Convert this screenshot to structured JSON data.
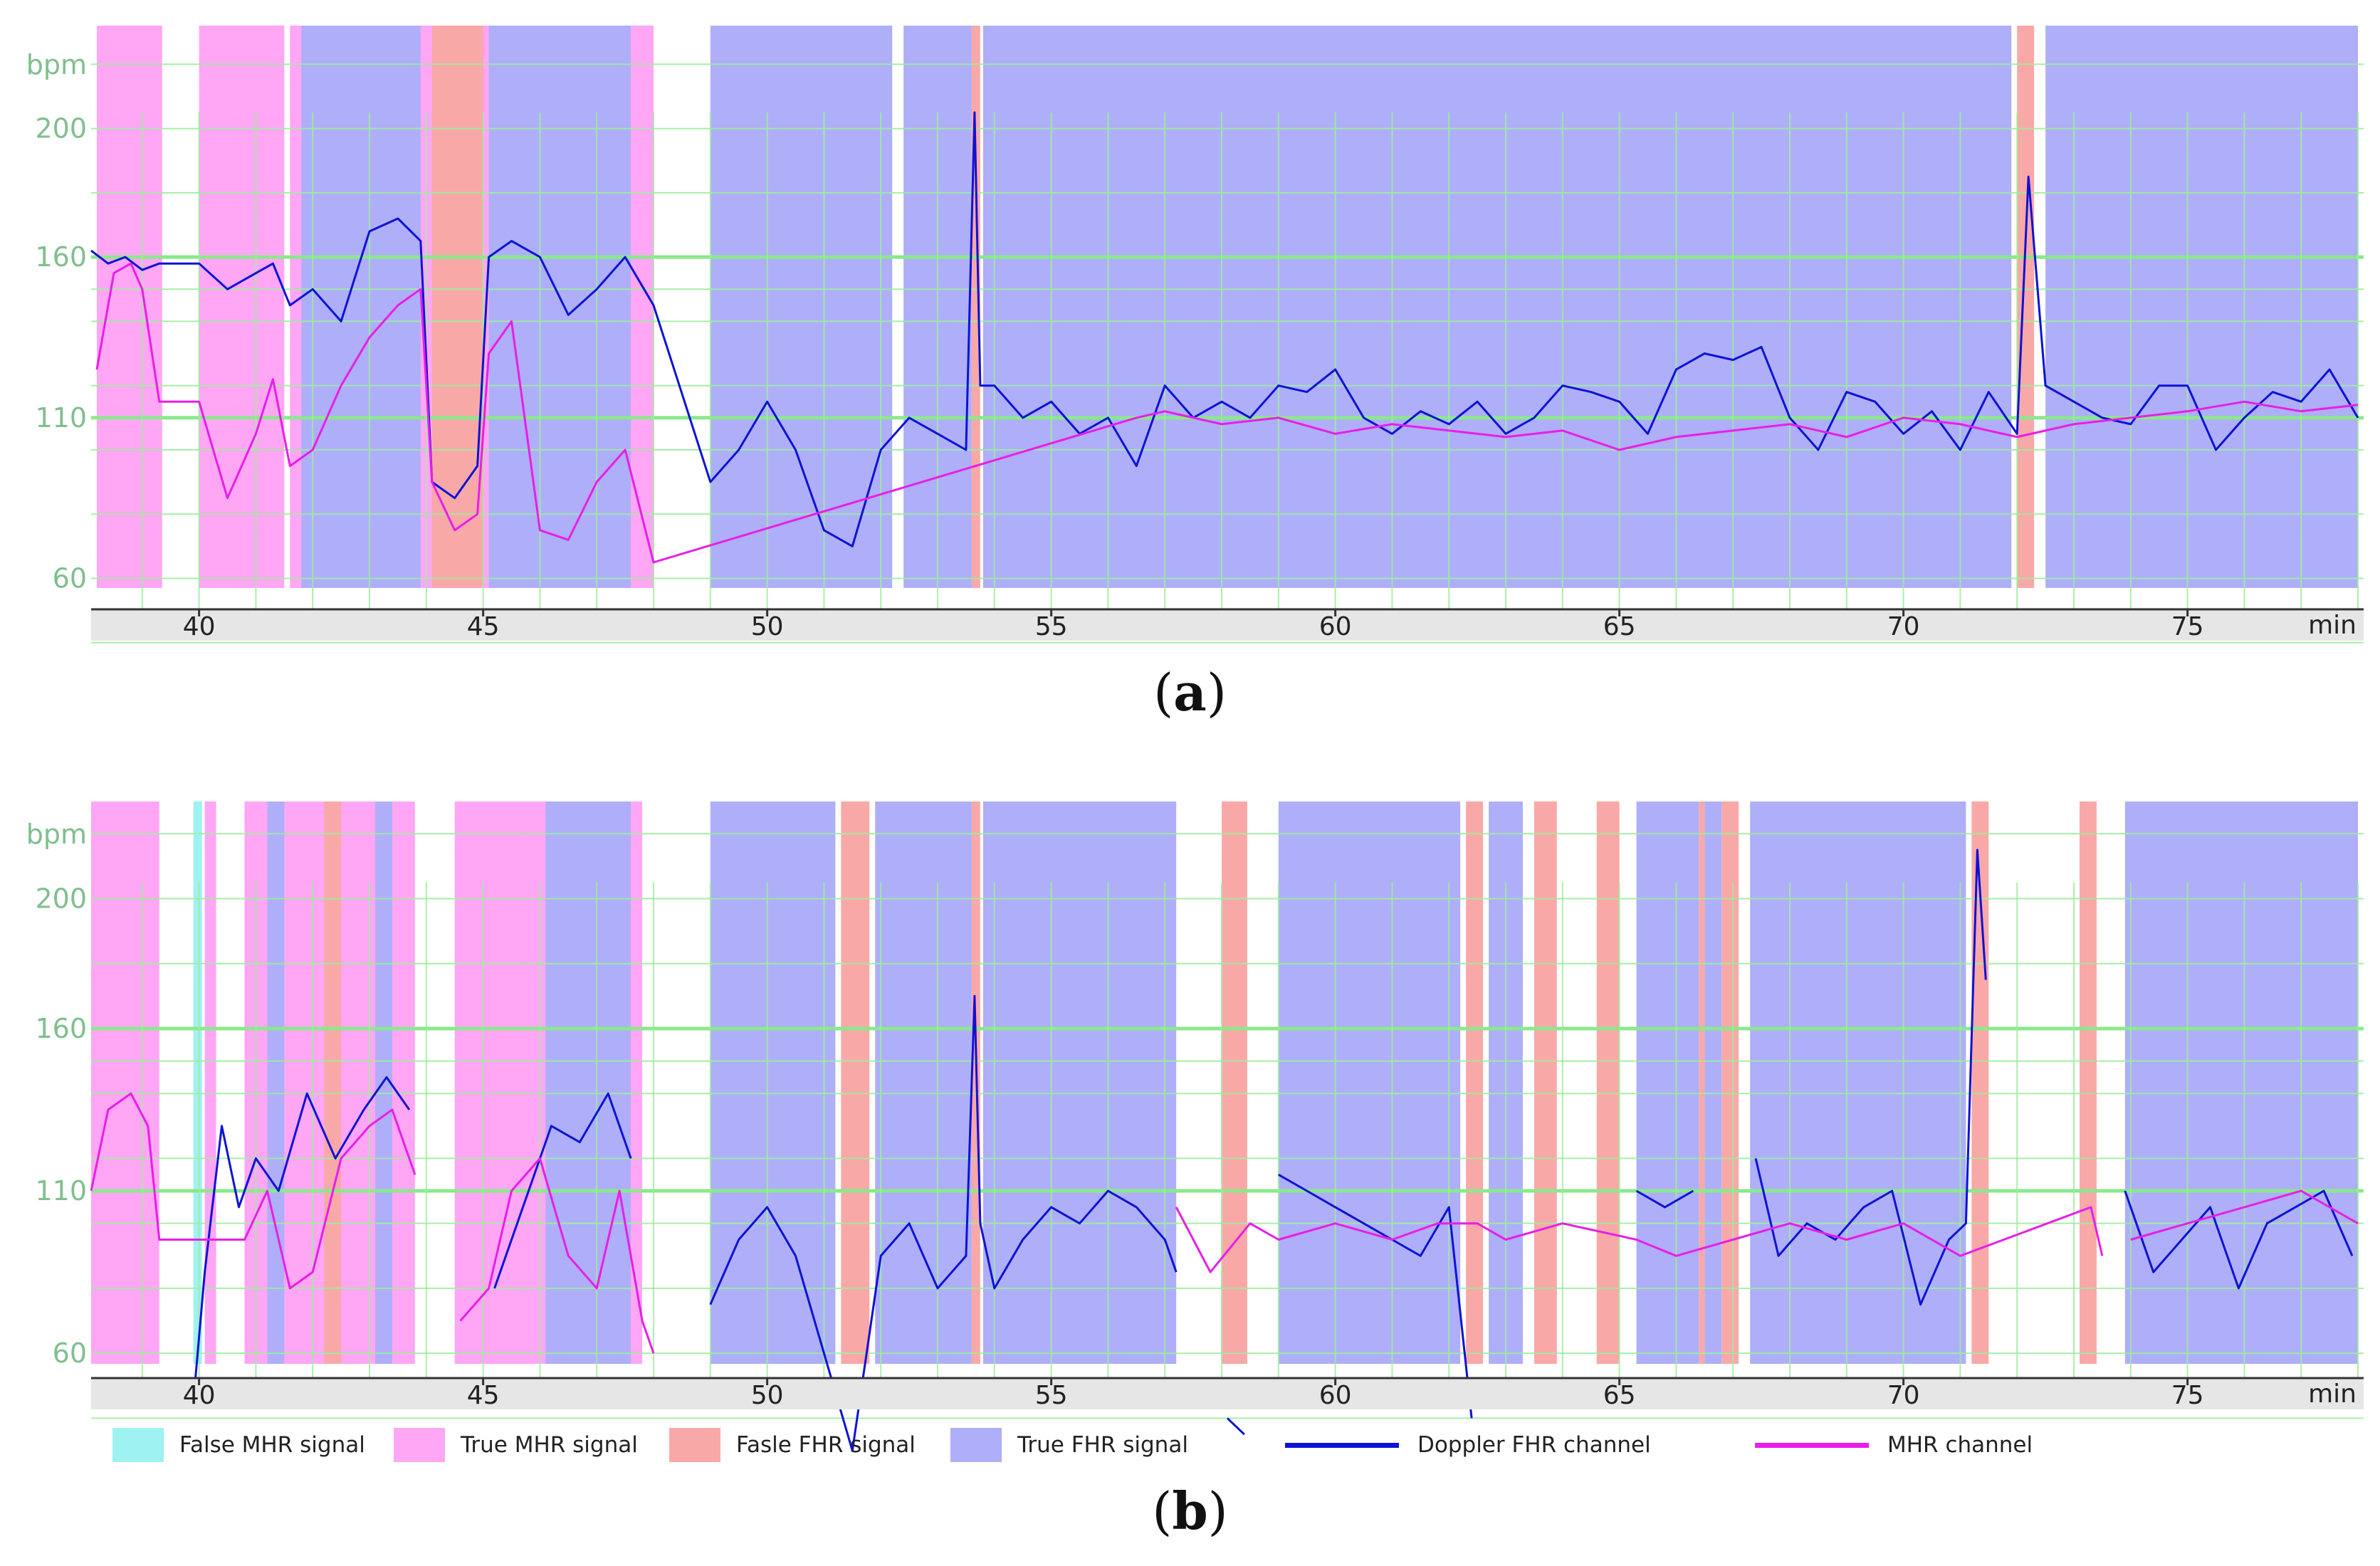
{
  "figure": {
    "panel_a_label": "a",
    "panel_b_label": "b"
  },
  "colors": {
    "false_mhr": "#9ff2f2",
    "true_mhr": "#ffa6f5",
    "false_fhr": "#f9a8a8",
    "true_fhr": "#aeaff8",
    "doppler_fhr": "#0d12d6",
    "mhr_channel": "#e81ee8",
    "grid": "#9eed9e",
    "grid_major": "#8be88b",
    "tick_text": "#7fbf8f"
  },
  "legend": [
    {
      "label": "False MHR signal",
      "type": "swatch",
      "color": "#9ff2f2"
    },
    {
      "label": "True MHR signal",
      "type": "swatch",
      "color": "#ffa6f5"
    },
    {
      "label": "Fasle FHR signal",
      "type": "swatch",
      "color": "#f9a8a8"
    },
    {
      "label": "True FHR signal",
      "type": "swatch",
      "color": "#aeaff8"
    },
    {
      "label": "Doppler FHR  channel",
      "type": "line",
      "color": "#0d12d6"
    },
    {
      "label": "MHR  channel",
      "type": "line",
      "color": "#e81ee8"
    }
  ],
  "chart_data": [
    {
      "type": "line",
      "panel": "a",
      "ylabel": "bpm",
      "xlabel": "min",
      "xlim": [
        38.1,
        78.1
      ],
      "ylim": [
        30,
        240
      ],
      "x_ticks": [
        40,
        45,
        50,
        55,
        60,
        65,
        70,
        75
      ],
      "y_ticks": [
        60,
        110,
        160,
        200
      ],
      "major_y_lines": [
        110,
        160
      ],
      "segments": [
        {
          "kind": "true_mhr",
          "start": 38.2,
          "end": 39.35
        },
        {
          "kind": "true_mhr",
          "start": 40.0,
          "end": 41.5
        },
        {
          "kind": "true_mhr",
          "start": 41.6,
          "end": 48.0
        },
        {
          "kind": "true_fhr",
          "start": 41.8,
          "end": 43.9
        },
        {
          "kind": "false_fhr",
          "start": 44.1,
          "end": 45.0
        },
        {
          "kind": "true_fhr",
          "start": 45.1,
          "end": 47.6
        },
        {
          "kind": "true_fhr",
          "start": 49.0,
          "end": 52.2
        },
        {
          "kind": "true_fhr",
          "start": 52.4,
          "end": 53.6
        },
        {
          "kind": "false_fhr",
          "start": 53.6,
          "end": 53.75
        },
        {
          "kind": "true_fhr",
          "start": 53.8,
          "end": 71.9
        },
        {
          "kind": "false_fhr",
          "start": 72.0,
          "end": 72.3
        },
        {
          "kind": "true_fhr",
          "start": 72.5,
          "end": 78.0
        }
      ],
      "series": [
        {
          "name": "Doppler FHR  channel",
          "x": [
            38.1,
            38.4,
            38.7,
            39.0,
            39.3,
            40.0,
            40.5,
            41.0,
            41.3,
            41.6,
            42.0,
            42.5,
            43.0,
            43.5,
            43.9,
            44.1,
            44.5,
            44.9,
            45.1,
            45.5,
            46.0,
            46.5,
            47.0,
            47.5,
            48.0,
            49.0,
            49.5,
            50.0,
            50.5,
            51.0,
            51.5,
            52.0,
            52.5,
            53.0,
            53.5,
            53.65,
            53.75,
            54.0,
            54.5,
            55.0,
            55.5,
            56.0,
            56.5,
            57.0,
            57.5,
            58.0,
            58.5,
            59.0,
            59.5,
            60.0,
            60.5,
            61.0,
            61.5,
            62.0,
            62.5,
            63.0,
            63.5,
            64.0,
            64.5,
            65.0,
            65.5,
            66.0,
            66.5,
            67.0,
            67.5,
            68.0,
            68.5,
            69.0,
            69.5,
            70.0,
            70.5,
            71.0,
            71.5,
            72.0,
            72.2,
            72.5,
            73.0,
            73.5,
            74.0,
            74.5,
            75.0,
            75.5,
            76.0,
            76.5,
            77.0,
            77.5,
            78.0
          ],
          "y": [
            162,
            158,
            160,
            156,
            158,
            158,
            150,
            155,
            158,
            145,
            150,
            140,
            168,
            172,
            165,
            90,
            85,
            95,
            160,
            165,
            160,
            142,
            150,
            160,
            145,
            90,
            100,
            115,
            100,
            75,
            70,
            100,
            110,
            105,
            100,
            205,
            120,
            120,
            110,
            115,
            105,
            110,
            95,
            120,
            110,
            115,
            110,
            120,
            118,
            125,
            110,
            105,
            112,
            108,
            115,
            105,
            110,
            120,
            118,
            115,
            105,
            125,
            130,
            128,
            132,
            110,
            100,
            118,
            115,
            105,
            112,
            100,
            118,
            105,
            185,
            120,
            115,
            110,
            108,
            120,
            120,
            100,
            110,
            118,
            115,
            125,
            110
          ]
        },
        {
          "name": "MHR  channel",
          "x": [
            38.2,
            38.5,
            38.8,
            39.0,
            39.3,
            40.0,
            40.5,
            41.0,
            41.3,
            41.6,
            42.0,
            42.5,
            43.0,
            43.5,
            43.9,
            44.1,
            44.5,
            44.9,
            45.1,
            45.5,
            46.0,
            46.5,
            47.0,
            47.5,
            48.0,
            56.5,
            57.0,
            58.0,
            59.0,
            60.0,
            61.0,
            62.0,
            63.0,
            64.0,
            65.0,
            66.0,
            67.0,
            68.0,
            69.0,
            70.0,
            71.0,
            72.0,
            73.0,
            74.0,
            75.0,
            76.0,
            77.0,
            78.0
          ],
          "y": [
            125,
            155,
            158,
            150,
            115,
            115,
            85,
            105,
            122,
            95,
            100,
            120,
            135,
            145,
            150,
            90,
            75,
            80,
            130,
            140,
            75,
            72,
            90,
            100,
            65,
            110,
            112,
            108,
            110,
            105,
            108,
            106,
            104,
            106,
            100,
            104,
            106,
            108,
            104,
            110,
            108,
            104,
            108,
            110,
            112,
            115,
            112,
            114
          ]
        }
      ]
    },
    {
      "type": "line",
      "panel": "b",
      "ylabel": "bpm",
      "xlabel": "min",
      "xlim": [
        38.1,
        78.1
      ],
      "ylim": [
        30,
        240
      ],
      "x_ticks": [
        40,
        45,
        50,
        55,
        60,
        65,
        70,
        75
      ],
      "y_ticks": [
        60,
        110,
        160,
        200
      ],
      "major_y_lines": [
        110,
        160
      ],
      "segments": [
        {
          "kind": "true_mhr",
          "start": 38.1,
          "end": 39.3
        },
        {
          "kind": "false_mhr",
          "start": 39.9,
          "end": 40.05
        },
        {
          "kind": "true_mhr",
          "start": 40.1,
          "end": 40.3
        },
        {
          "kind": "true_mhr",
          "start": 40.8,
          "end": 43.8
        },
        {
          "kind": "true_fhr",
          "start": 41.2,
          "end": 41.5
        },
        {
          "kind": "false_fhr",
          "start": 42.2,
          "end": 42.5
        },
        {
          "kind": "true_fhr",
          "start": 43.1,
          "end": 43.4
        },
        {
          "kind": "true_mhr",
          "start": 44.5,
          "end": 45.7
        },
        {
          "kind": "true_mhr",
          "start": 45.7,
          "end": 47.8
        },
        {
          "kind": "true_fhr",
          "start": 46.1,
          "end": 47.6
        },
        {
          "kind": "true_fhr",
          "start": 49.0,
          "end": 51.2
        },
        {
          "kind": "false_fhr",
          "start": 51.3,
          "end": 51.8
        },
        {
          "kind": "true_fhr",
          "start": 51.9,
          "end": 53.6
        },
        {
          "kind": "false_fhr",
          "start": 53.6,
          "end": 53.75
        },
        {
          "kind": "true_fhr",
          "start": 53.8,
          "end": 57.2
        },
        {
          "kind": "false_fhr",
          "start": 58.0,
          "end": 58.45
        },
        {
          "kind": "true_fhr",
          "start": 59.0,
          "end": 62.2
        },
        {
          "kind": "false_fhr",
          "start": 62.3,
          "end": 62.6
        },
        {
          "kind": "true_fhr",
          "start": 62.7,
          "end": 63.3
        },
        {
          "kind": "false_fhr",
          "start": 63.5,
          "end": 63.9
        },
        {
          "kind": "false_fhr",
          "start": 64.6,
          "end": 65.0
        },
        {
          "kind": "true_fhr",
          "start": 65.3,
          "end": 66.4
        },
        {
          "kind": "false_fhr",
          "start": 66.4,
          "end": 66.5
        },
        {
          "kind": "true_fhr",
          "start": 66.5,
          "end": 66.8
        },
        {
          "kind": "false_fhr",
          "start": 66.8,
          "end": 67.1
        },
        {
          "kind": "true_fhr",
          "start": 67.3,
          "end": 71.1
        },
        {
          "kind": "false_fhr",
          "start": 71.2,
          "end": 71.5
        },
        {
          "kind": "false_fhr",
          "start": 73.1,
          "end": 73.4
        },
        {
          "kind": "true_fhr",
          "start": 73.9,
          "end": 78.0
        }
      ],
      "series": [
        {
          "name": "Doppler FHR  channel",
          "x": [
            39.9,
            40.1,
            40.4,
            40.7,
            41.0,
            41.4,
            41.9,
            42.4,
            42.9,
            43.3,
            43.7,
            45.2,
            45.8,
            46.2,
            46.7,
            47.2,
            47.6,
            49.0,
            49.5,
            50.0,
            50.5,
            51.0,
            51.5,
            52.0,
            52.5,
            53.0,
            53.5,
            53.65,
            53.75,
            54.0,
            54.5,
            55.0,
            55.5,
            56.0,
            56.5,
            57.0,
            57.2,
            58.1,
            58.4,
            59.0,
            59.5,
            60.0,
            60.5,
            61.0,
            61.5,
            62.0,
            62.4,
            63.0,
            63.6,
            63.9,
            65.3,
            65.8,
            66.3,
            67.4,
            67.8,
            68.3,
            68.8,
            69.3,
            69.8,
            70.3,
            70.8,
            71.1,
            71.3,
            71.45,
            73.9,
            74.4,
            74.9,
            75.4,
            75.9,
            76.4,
            76.9,
            77.4,
            77.9
          ],
          "y": [
            45,
            85,
            130,
            105,
            120,
            110,
            140,
            120,
            135,
            145,
            135,
            80,
            110,
            130,
            125,
            140,
            120,
            75,
            95,
            105,
            90,
            60,
            30,
            90,
            100,
            80,
            90,
            170,
            100,
            80,
            95,
            105,
            100,
            110,
            105,
            95,
            85,
            40,
            35,
            115,
            110,
            105,
            100,
            95,
            90,
            105,
            40,
            95,
            50,
            50,
            110,
            105,
            110,
            120,
            90,
            100,
            95,
            105,
            110,
            75,
            95,
            100,
            215,
            175,
            110,
            85,
            95,
            105,
            80,
            100,
            105,
            110,
            90
          ],
          "breaks": [
            11,
            17,
            37,
            39,
            47,
            48,
            50,
            53,
            64
          ]
        },
        {
          "name": "MHR  channel",
          "x": [
            38.1,
            38.4,
            38.8,
            39.1,
            39.3,
            40.8,
            41.2,
            41.6,
            42.0,
            42.5,
            43.0,
            43.4,
            43.8,
            44.6,
            45.1,
            45.5,
            46.0,
            46.5,
            47.0,
            47.4,
            47.8,
            48.0,
            57.2,
            57.8,
            58.5,
            59.0,
            60.0,
            61.0,
            61.8,
            62.5,
            63.0,
            64.0,
            65.3,
            66.0,
            67.0,
            68.0,
            69.0,
            70.0,
            71.0,
            73.3,
            73.5,
            74.0,
            75.0,
            76.0,
            77.0,
            78.0
          ],
          "y": [
            110,
            135,
            140,
            130,
            95,
            95,
            110,
            80,
            85,
            120,
            130,
            135,
            115,
            70,
            80,
            110,
            120,
            90,
            80,
            110,
            70,
            60,
            105,
            85,
            100,
            95,
            100,
            95,
            100,
            100,
            95,
            100,
            95,
            90,
            95,
            100,
            95,
            100,
            90,
            105,
            90,
            95,
            100,
            105,
            110,
            100
          ],
          "breaks": [
            13,
            22,
            41
          ]
        }
      ]
    }
  ]
}
